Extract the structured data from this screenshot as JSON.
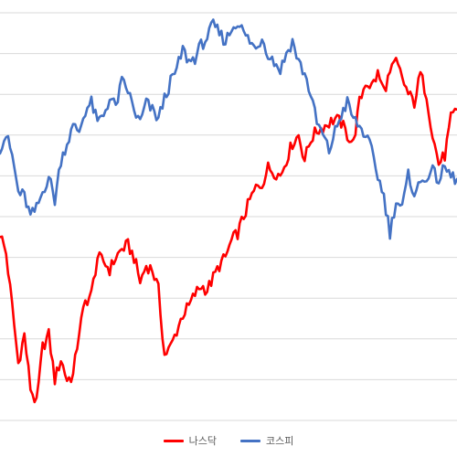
{
  "chart_data": {
    "type": "line",
    "title": "",
    "xlabel": "",
    "ylabel": "",
    "grid": "horizontal",
    "legend_position": "bottom",
    "ylim": [
      0,
      100
    ],
    "n_points": 226,
    "series": [
      {
        "name": "나스닥",
        "color": "#ff0000",
        "anchors": [
          [
            0,
            46
          ],
          [
            3,
            41
          ],
          [
            6,
            28
          ],
          [
            9,
            14
          ],
          [
            12,
            21
          ],
          [
            15,
            8
          ],
          [
            18,
            4
          ],
          [
            21,
            18
          ],
          [
            24,
            21
          ],
          [
            27,
            10
          ],
          [
            30,
            15
          ],
          [
            33,
            10
          ],
          [
            36,
            11
          ],
          [
            39,
            22
          ],
          [
            42,
            29
          ],
          [
            45,
            31
          ],
          [
            48,
            40
          ],
          [
            51,
            39
          ],
          [
            54,
            37
          ],
          [
            57,
            40
          ],
          [
            60,
            42
          ],
          [
            63,
            43
          ],
          [
            66,
            40
          ],
          [
            69,
            34
          ],
          [
            72,
            38
          ],
          [
            75,
            37
          ],
          [
            78,
            32
          ],
          [
            81,
            16
          ],
          [
            84,
            18
          ],
          [
            87,
            22
          ],
          [
            90,
            26
          ],
          [
            93,
            28
          ],
          [
            96,
            31
          ],
          [
            99,
            33
          ],
          [
            102,
            32
          ],
          [
            105,
            35
          ],
          [
            108,
            38
          ],
          [
            111,
            40
          ],
          [
            114,
            44
          ],
          [
            117,
            46
          ],
          [
            120,
            50
          ],
          [
            123,
            54
          ],
          [
            126,
            57
          ],
          [
            129,
            58
          ],
          [
            132,
            62
          ],
          [
            135,
            61
          ],
          [
            138,
            60
          ],
          [
            141,
            64
          ],
          [
            144,
            68
          ],
          [
            147,
            70
          ],
          [
            150,
            64
          ],
          [
            153,
            69
          ],
          [
            156,
            71
          ],
          [
            159,
            72
          ],
          [
            162,
            73
          ],
          [
            165,
            74
          ],
          [
            168,
            73
          ],
          [
            171,
            70
          ],
          [
            174,
            68
          ],
          [
            177,
            78
          ],
          [
            180,
            83
          ],
          [
            183,
            82
          ],
          [
            186,
            85
          ],
          [
            189,
            81
          ],
          [
            192,
            85
          ],
          [
            195,
            88
          ],
          [
            198,
            84
          ],
          [
            201,
            80
          ],
          [
            204,
            78
          ],
          [
            207,
            85
          ],
          [
            210,
            80
          ],
          [
            213,
            70
          ],
          [
            216,
            63
          ],
          [
            219,
            65
          ],
          [
            222,
            74
          ],
          [
            225,
            76
          ]
        ]
      },
      {
        "name": "코스피",
        "color": "#4472c4",
        "anchors": [
          [
            0,
            67
          ],
          [
            3,
            70
          ],
          [
            6,
            65
          ],
          [
            9,
            56
          ],
          [
            12,
            55
          ],
          [
            15,
            50
          ],
          [
            18,
            52
          ],
          [
            21,
            56
          ],
          [
            24,
            60
          ],
          [
            27,
            54
          ],
          [
            30,
            64
          ],
          [
            33,
            68
          ],
          [
            36,
            72
          ],
          [
            39,
            71
          ],
          [
            42,
            76
          ],
          [
            45,
            78
          ],
          [
            48,
            73
          ],
          [
            51,
            75
          ],
          [
            54,
            79
          ],
          [
            57,
            77
          ],
          [
            60,
            83
          ],
          [
            63,
            81
          ],
          [
            66,
            76
          ],
          [
            69,
            73
          ],
          [
            72,
            78
          ],
          [
            75,
            76
          ],
          [
            78,
            74
          ],
          [
            81,
            79
          ],
          [
            84,
            83
          ],
          [
            87,
            86
          ],
          [
            90,
            91
          ],
          [
            93,
            88
          ],
          [
            96,
            89
          ],
          [
            99,
            92
          ],
          [
            102,
            94
          ],
          [
            105,
            97
          ],
          [
            108,
            95
          ],
          [
            111,
            93
          ],
          [
            114,
            96
          ],
          [
            117,
            98
          ],
          [
            120,
            95
          ],
          [
            123,
            93
          ],
          [
            126,
            91
          ],
          [
            129,
            94
          ],
          [
            132,
            90
          ],
          [
            135,
            88
          ],
          [
            138,
            86
          ],
          [
            141,
            90
          ],
          [
            144,
            93
          ],
          [
            147,
            88
          ],
          [
            150,
            85
          ],
          [
            153,
            80
          ],
          [
            156,
            73
          ],
          [
            159,
            70
          ],
          [
            162,
            66
          ],
          [
            165,
            71
          ],
          [
            168,
            75
          ],
          [
            171,
            78
          ],
          [
            174,
            74
          ],
          [
            177,
            72
          ],
          [
            180,
            70
          ],
          [
            183,
            66
          ],
          [
            186,
            60
          ],
          [
            189,
            55
          ],
          [
            192,
            46
          ],
          [
            195,
            54
          ],
          [
            198,
            52
          ],
          [
            201,
            60
          ],
          [
            204,
            56
          ],
          [
            207,
            58
          ],
          [
            210,
            60
          ],
          [
            213,
            61
          ],
          [
            216,
            59
          ],
          [
            219,
            62
          ],
          [
            222,
            60
          ],
          [
            225,
            59
          ]
        ]
      }
    ]
  }
}
